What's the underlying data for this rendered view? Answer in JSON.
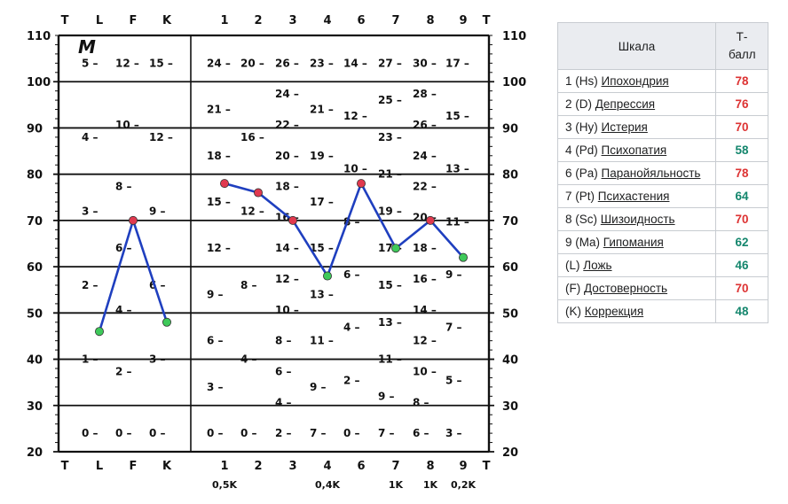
{
  "chart_data": {
    "type": "line",
    "panel_label": "M",
    "y_ticks": [
      "110",
      "100",
      "90",
      "80",
      "70",
      "60",
      "50",
      "40",
      "30",
      "20"
    ],
    "y_ticks_right": [
      "110",
      "100",
      "90",
      "80",
      "70",
      "60",
      "50",
      "40",
      "30",
      "20"
    ],
    "ylim": [
      20,
      110
    ],
    "top_labels": [
      "T",
      "L",
      "F",
      "K",
      "1",
      "2",
      "3",
      "4",
      "6",
      "7",
      "8",
      "9",
      "T"
    ],
    "bottom_labels": [
      "T",
      "L",
      "F",
      "K",
      "1",
      "2",
      "3",
      "4",
      "6",
      "7",
      "8",
      "9",
      "T"
    ],
    "k_corrections": [
      "0,5K",
      "0,4K",
      "1K",
      "1K",
      "0,2K"
    ],
    "series": [
      {
        "categories": [
          "L",
          "F",
          "K"
        ],
        "values": [
          46,
          70,
          48
        ],
        "marker_colors": [
          "#3ec95a",
          "#e0394f",
          "#3ec95a"
        ]
      },
      {
        "categories": [
          "1",
          "2",
          "3",
          "4",
          "6",
          "7",
          "8",
          "9"
        ],
        "values": [
          78,
          76,
          70,
          58,
          78,
          64,
          70,
          62
        ],
        "marker_colors": [
          "#e0394f",
          "#e0394f",
          "#e0394f",
          "#3ec95a",
          "#e0394f",
          "#3ec95a",
          "#e0394f",
          "#3ec95a"
        ]
      }
    ],
    "line_color": "#1f3fbf",
    "raw_scores": {
      "L": [
        "5",
        "4",
        "3",
        "2",
        "1",
        "0"
      ],
      "F": [
        "12",
        "10",
        "8",
        "6",
        "4",
        "2",
        "0"
      ],
      "K": [
        "15",
        "12",
        "9",
        "6",
        "3",
        "0"
      ],
      "1": [
        "24",
        "21",
        "18",
        "15",
        "12",
        "9",
        "6",
        "3",
        "0"
      ],
      "2": [
        "20",
        "16",
        "12",
        "8",
        "4",
        "0"
      ],
      "3": [
        "26",
        "24",
        "22",
        "20",
        "18",
        "16",
        "14",
        "12",
        "10",
        "8",
        "6",
        "4",
        "2"
      ],
      "4": [
        "23",
        "21",
        "19",
        "17",
        "15",
        "13",
        "11",
        "9",
        "7"
      ],
      "6": [
        "14",
        "12",
        "10",
        "8",
        "6",
        "4",
        "2",
        "0"
      ],
      "7": [
        "27",
        "25",
        "23",
        "21",
        "19",
        "17",
        "15",
        "13",
        "11",
        "9",
        "7"
      ],
      "8": [
        "30",
        "28",
        "26",
        "24",
        "22",
        "20",
        "18",
        "16",
        "14",
        "12",
        "10",
        "8",
        "6"
      ],
      "9": [
        "17",
        "15",
        "13",
        "11",
        "9",
        "7",
        "5",
        "3"
      ]
    }
  },
  "table": {
    "header_scale": "Шкала",
    "header_t": "Т-балл",
    "rows": [
      {
        "prefix": "1 (Hs)",
        "name": "Ипохондрия",
        "value": "78",
        "color": "#d33"
      },
      {
        "prefix": "2 (D)",
        "name": "Депрессия",
        "value": "76",
        "color": "#d33"
      },
      {
        "prefix": "3 (Hy)",
        "name": "Истерия",
        "value": "70",
        "color": "#d33"
      },
      {
        "prefix": "4 (Pd)",
        "name": "Психопатия",
        "value": "58",
        "color": "#14866d"
      },
      {
        "prefix": "6 (Pa)",
        "name": "Паранойяльность",
        "value": "78",
        "color": "#d33"
      },
      {
        "prefix": "7 (Pt)",
        "name": "Психастения",
        "value": "64",
        "color": "#14866d"
      },
      {
        "prefix": "8 (Sc)",
        "name": "Шизоидность",
        "value": "70",
        "color": "#d33"
      },
      {
        "prefix": "9 (Ma)",
        "name": "Гипомания",
        "value": "62",
        "color": "#14866d"
      },
      {
        "prefix": "(L)",
        "name": "Ложь",
        "value": "46",
        "color": "#14866d"
      },
      {
        "prefix": "(F)",
        "name": "Достоверность",
        "value": "70",
        "color": "#d33"
      },
      {
        "prefix": "(K)",
        "name": "Коррекция",
        "value": "48",
        "color": "#14866d"
      }
    ]
  }
}
